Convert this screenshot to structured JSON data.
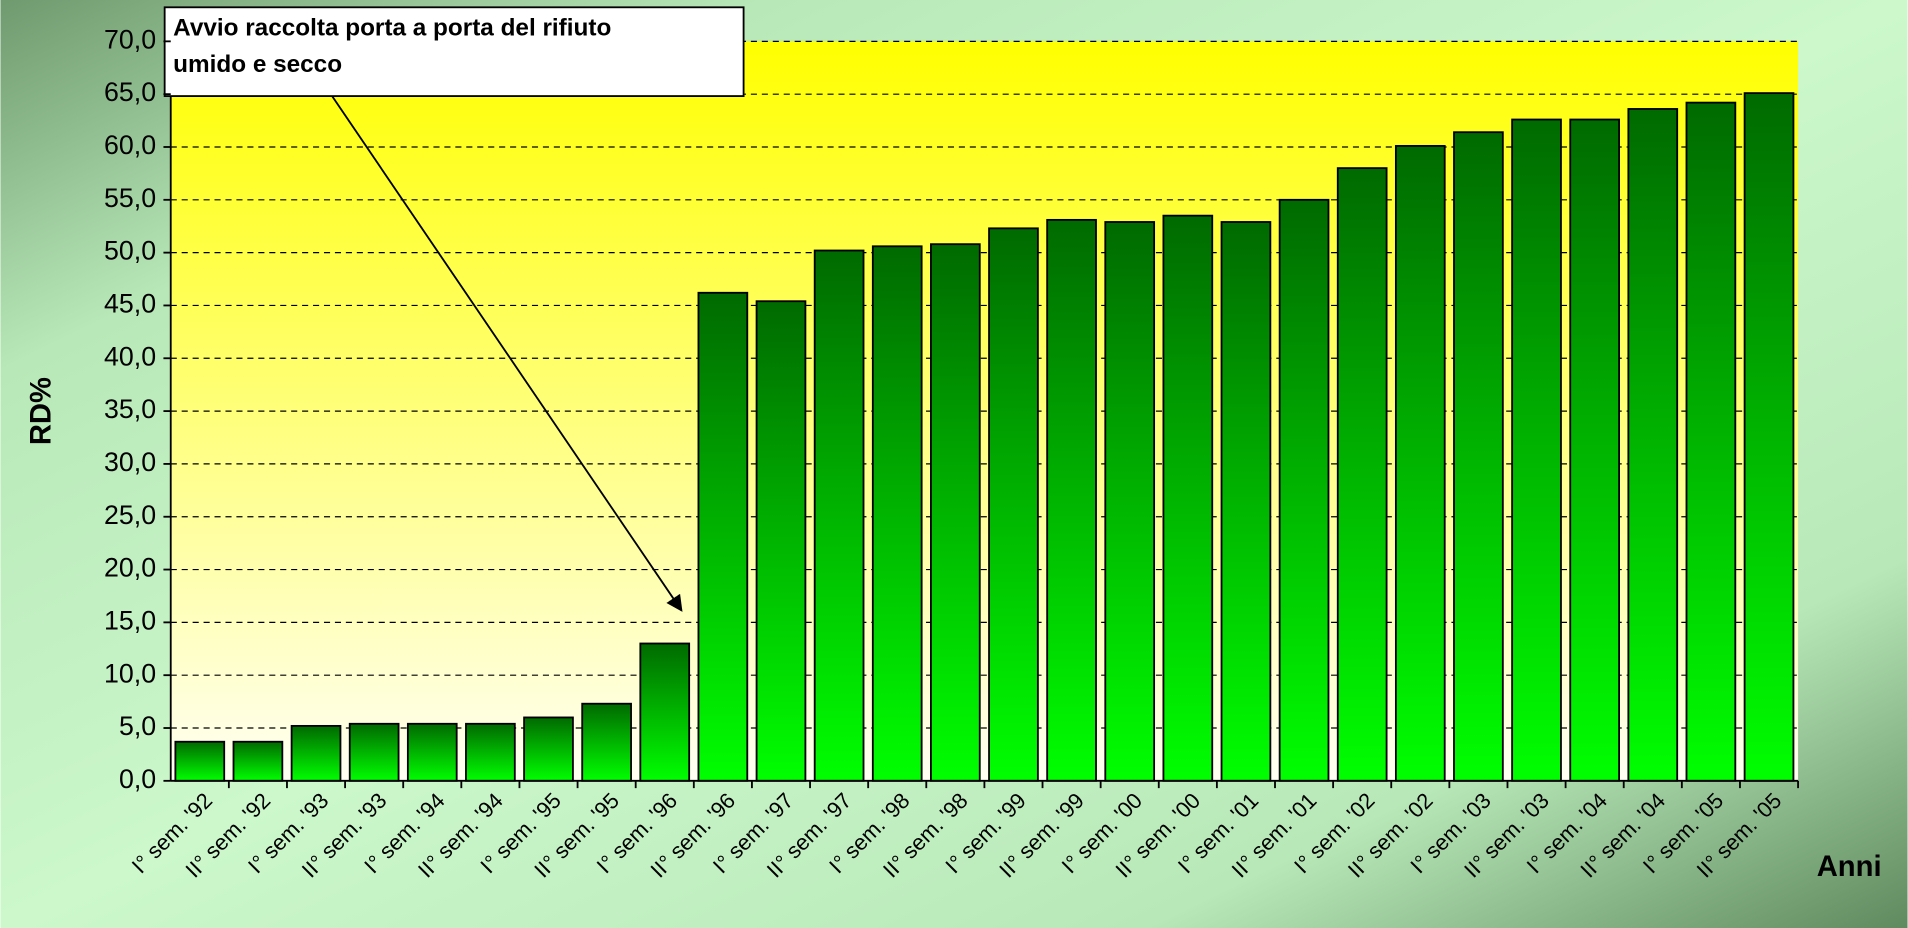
{
  "chart_data": {
    "type": "bar",
    "annotation": [
      "Avvio raccolta porta a porta del rifiuto",
      "umido e secco"
    ],
    "ylabel": "RD%",
    "xlabel": "Anni",
    "categories": [
      "I° sem. '92",
      "II° sem. '92",
      "I° sem. '93",
      "II° sem. '93",
      "I° sem. '94",
      "II° sem. '94",
      "I° sem. '95",
      "II° sem. '95",
      "I° sem. '96",
      "II° sem. '96",
      "I° sem. '97",
      "II° sem. '97",
      "I° sem. '98",
      "II° sem. '98",
      "I° sem. '99",
      "II° sem. '99",
      "I° sem. '00",
      "II° sem. '00",
      "I° sem. '01",
      "II° sem. '01",
      "I° sem. '02",
      "II° sem. '02",
      "I° sem. '03",
      "II° sem. '03",
      "I° sem. '04",
      "II° sem. '04",
      "I° sem. '05",
      "II° sem. '05"
    ],
    "values": [
      3.7,
      3.7,
      5.2,
      5.4,
      5.4,
      5.4,
      6.0,
      7.3,
      13.0,
      46.2,
      45.4,
      50.2,
      50.6,
      50.8,
      52.3,
      53.1,
      52.9,
      53.5,
      52.9,
      55.0,
      58.0,
      60.1,
      61.4,
      62.6,
      62.6,
      63.6,
      64.2,
      65.1
    ],
    "color": "#00b000",
    "ylim": [
      0,
      70
    ],
    "yticks": [
      {
        "value": 0,
        "label": "0,0"
      },
      {
        "value": 5,
        "label": "5,0"
      },
      {
        "value": 10,
        "label": "10,0"
      },
      {
        "value": 15,
        "label": "15,0"
      },
      {
        "value": 20,
        "label": "20,0"
      },
      {
        "value": 25,
        "label": "25,0"
      },
      {
        "value": 30,
        "label": "30,0"
      },
      {
        "value": 35,
        "label": "35,0"
      },
      {
        "value": 40,
        "label": "40,0"
      },
      {
        "value": 45,
        "label": "45,0"
      },
      {
        "value": 50,
        "label": "50,0"
      },
      {
        "value": 55,
        "label": "55,0"
      },
      {
        "value": 60,
        "label": "60,0"
      },
      {
        "value": 65,
        "label": "65,0"
      },
      {
        "value": 70,
        "label": "70,0"
      }
    ],
    "grid": true
  }
}
